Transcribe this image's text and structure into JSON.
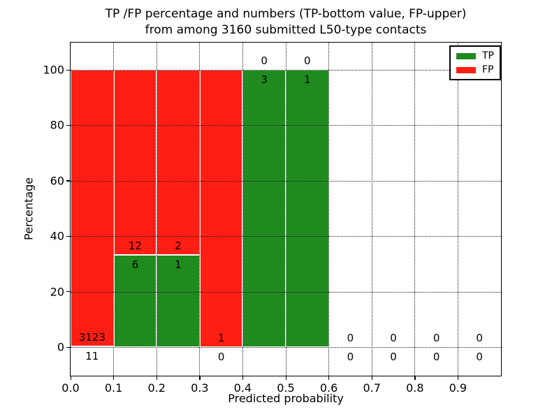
{
  "title": {
    "line1": "TP /FP percentage and numbers (TP-bottom value, FP-upper)",
    "line2": "from among 3160 submitted L50-type contacts"
  },
  "axes": {
    "xlabel": "Predicted probability",
    "ylabel": "Percentage",
    "xtick_labels": [
      "0.0",
      "0.1",
      "0.2",
      "0.3",
      "0.4",
      "0.5",
      "0.6",
      "0.7",
      "0.8",
      "0.9"
    ],
    "ytick_labels": [
      "0",
      "20",
      "40",
      "60",
      "80",
      "100"
    ],
    "ytick_values": [
      0,
      20,
      40,
      60,
      80,
      100
    ],
    "xlim": [
      0.0,
      1.0
    ],
    "ylim_display": [
      0,
      100
    ],
    "grid_style": "dotted"
  },
  "legend": {
    "position": "upper-right",
    "items": [
      {
        "label": "TP",
        "color": "#1f8b1f"
      },
      {
        "label": "FP",
        "color": "#ff1e14"
      }
    ]
  },
  "chart_data": {
    "type": "bar",
    "stacked": true,
    "title": "TP /FP percentage and numbers (TP-bottom value, FP-upper) from among 3160 submitted L50-type contacts",
    "xlabel": "Predicted probability",
    "ylabel": "Percentage",
    "ylim": [
      0,
      100
    ],
    "tp_color": "#1f8b1f",
    "fp_color": "#ff1e14",
    "bin_width": 0.1,
    "bins": [
      {
        "range": [
          0.0,
          0.1
        ],
        "tp": 11,
        "fp": 3123
      },
      {
        "range": [
          0.1,
          0.2
        ],
        "tp": 6,
        "fp": 12
      },
      {
        "range": [
          0.2,
          0.3
        ],
        "tp": 1,
        "fp": 2
      },
      {
        "range": [
          0.3,
          0.4
        ],
        "tp": 0,
        "fp": 1
      },
      {
        "range": [
          0.4,
          0.5
        ],
        "tp": 3,
        "fp": 0
      },
      {
        "range": [
          0.5,
          0.6
        ],
        "tp": 1,
        "fp": 0
      },
      {
        "range": [
          0.6,
          0.7
        ],
        "tp": 0,
        "fp": 0
      },
      {
        "range": [
          0.7,
          0.8
        ],
        "tp": 0,
        "fp": 0
      },
      {
        "range": [
          0.8,
          0.9
        ],
        "tp": 0,
        "fp": 0
      },
      {
        "range": [
          0.9,
          1.0
        ],
        "tp": 0,
        "fp": 0
      }
    ]
  }
}
